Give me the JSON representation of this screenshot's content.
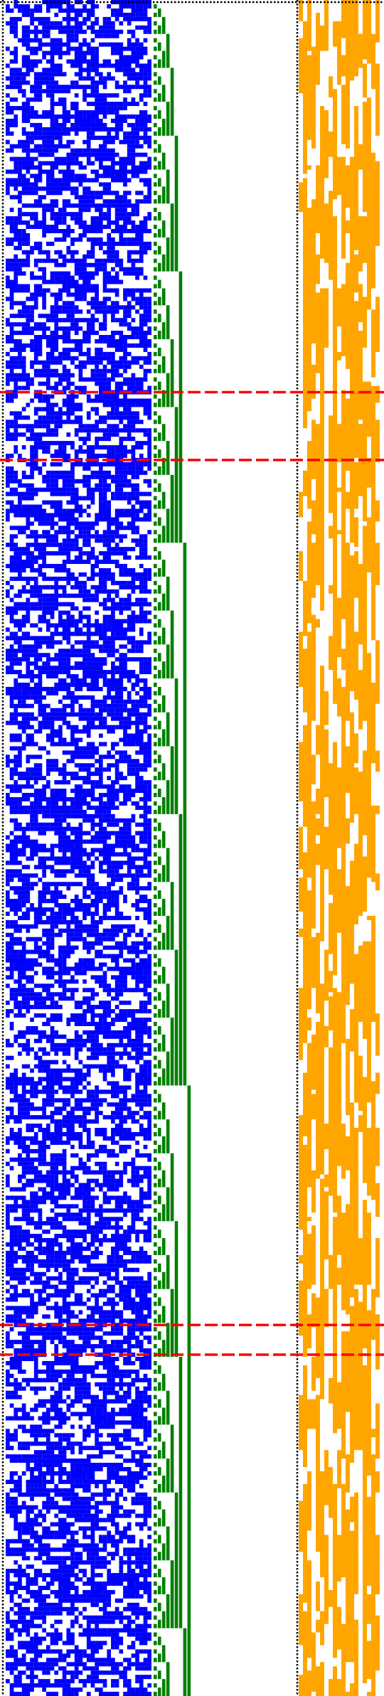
{
  "colors": {
    "background": "#ffffff",
    "random_bits": "#0000ff",
    "counter_bits": "#008000",
    "mask_bits": "#ffa500",
    "marker_lines": "#ff0000",
    "column_separators": "#000000"
  },
  "grid": {
    "rows": 400,
    "random_columns": 36,
    "counter_columns": 33,
    "mask_columns": 19
  },
  "pattern": {
    "random_density": 0.5,
    "counter_start_value": 0,
    "counter_step": 1,
    "mask_description_visible": false
  },
  "markers": {
    "count": 4,
    "style": "dashed",
    "row_indices": [
      92,
      108,
      312,
      319
    ]
  },
  "separators": {
    "count": 3,
    "style": "dotted"
  }
}
